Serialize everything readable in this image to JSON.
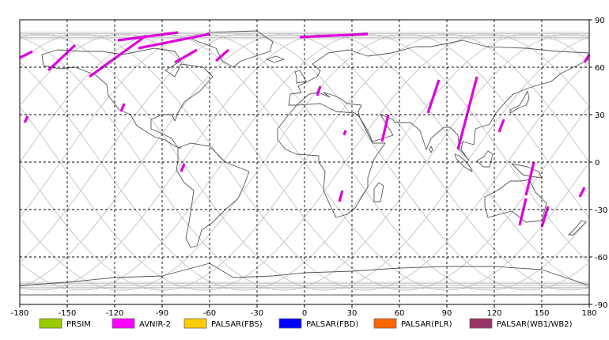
{
  "map": {
    "x_ticks": [
      "-180",
      "-150",
      "-120",
      "-90",
      "-60",
      "-30",
      "0",
      "30",
      "60",
      "90",
      "120",
      "150",
      "180"
    ],
    "y_ticks": [
      "90",
      "60",
      "30",
      "0",
      "-30",
      "-60",
      "-90"
    ],
    "lon_range": [
      -180,
      180
    ],
    "lat_range": [
      -90,
      90
    ],
    "grid": "dashed",
    "background": "#ffffff",
    "coastline_color": "#555555",
    "orbit_color": "#bbbbbb",
    "swath_color": "#dd00dd"
  },
  "legend": {
    "items": [
      {
        "label": "PRSIM",
        "color": "#99cc00"
      },
      {
        "label": "AVNIR-2",
        "color": "#ff00ff"
      },
      {
        "label": "PALSAR(FBS)",
        "color": "#ffcc00"
      },
      {
        "label": "PALSAR(FBD)",
        "color": "#0000ff"
      },
      {
        "label": "PALSAR(PLR)",
        "color": "#ff6600"
      },
      {
        "label": "PALSAR(WB1/WB2)",
        "color": "#993366"
      }
    ]
  },
  "swaths": [
    {
      "lon1": -180,
      "lat1": 66,
      "lon2": -172,
      "lat2": 70
    },
    {
      "lon1": -162,
      "lat1": 58,
      "lon2": -145,
      "lat2": 74
    },
    {
      "lon1": -136,
      "lat1": 54,
      "lon2": -100,
      "lat2": 80
    },
    {
      "lon1": -105,
      "lat1": 72,
      "lon2": -60,
      "lat2": 81
    },
    {
      "lon1": -118,
      "lat1": 77,
      "lon2": -80,
      "lat2": 82
    },
    {
      "lon1": -82,
      "lat1": 63,
      "lon2": -68,
      "lat2": 71
    },
    {
      "lon1": -56,
      "lat1": 64,
      "lon2": -48,
      "lat2": 71
    },
    {
      "lon1": -3,
      "lat1": 79,
      "lon2": 40,
      "lat2": 81
    },
    {
      "lon1": -177,
      "lat1": 25,
      "lon2": -175,
      "lat2": 29
    },
    {
      "lon1": -116,
      "lat1": 32,
      "lon2": -114,
      "lat2": 37
    },
    {
      "lon1": -78,
      "lat1": -6,
      "lon2": -76,
      "lat2": -1
    },
    {
      "lon1": 8,
      "lat1": 42,
      "lon2": 10,
      "lat2": 48
    },
    {
      "lon1": 22,
      "lat1": -25,
      "lon2": 24,
      "lat2": -18
    },
    {
      "lon1": 25,
      "lat1": 17,
      "lon2": 26,
      "lat2": 20
    },
    {
      "lon1": 49,
      "lat1": 13,
      "lon2": 53,
      "lat2": 30
    },
    {
      "lon1": 78,
      "lat1": 31,
      "lon2": 85,
      "lat2": 52
    },
    {
      "lon1": 97,
      "lat1": 8,
      "lon2": 109,
      "lat2": 54
    },
    {
      "lon1": 123,
      "lat1": 19,
      "lon2": 126,
      "lat2": 27
    },
    {
      "lon1": 140,
      "lat1": -21,
      "lon2": 145,
      "lat2": 0
    },
    {
      "lon1": 136,
      "lat1": -40,
      "lon2": 140,
      "lat2": -23
    },
    {
      "lon1": 150,
      "lat1": -41,
      "lon2": 154,
      "lat2": -28
    },
    {
      "lon1": 174,
      "lat1": -22,
      "lon2": 177,
      "lat2": -16
    },
    {
      "lon1": 177,
      "lat1": 63,
      "lon2": 180,
      "lat2": 68
    }
  ],
  "landmasses": [
    {
      "name": "north-america",
      "pts": [
        [
          -166,
          68
        ],
        [
          -156,
          71
        ],
        [
          -140,
          70
        ],
        [
          -128,
          70
        ],
        [
          -115,
          68
        ],
        [
          -95,
          72
        ],
        [
          -82,
          70
        ],
        [
          -78,
          64
        ],
        [
          -88,
          58
        ],
        [
          -82,
          54
        ],
        [
          -78,
          62
        ],
        [
          -64,
          60
        ],
        [
          -58,
          54
        ],
        [
          -66,
          45
        ],
        [
          -76,
          38
        ],
        [
          -80,
          31
        ],
        [
          -82,
          26
        ],
        [
          -84,
          30
        ],
        [
          -90,
          30
        ],
        [
          -97,
          27
        ],
        [
          -97,
          21
        ],
        [
          -90,
          18
        ],
        [
          -84,
          15
        ],
        [
          -80,
          9
        ],
        [
          -78,
          9
        ],
        [
          -82,
          10
        ],
        [
          -88,
          14
        ],
        [
          -95,
          16
        ],
        [
          -106,
          23
        ],
        [
          -110,
          30
        ],
        [
          -117,
          33
        ],
        [
          -124,
          42
        ],
        [
          -125,
          49
        ],
        [
          -132,
          55
        ],
        [
          -145,
          60
        ],
        [
          -155,
          59
        ],
        [
          -165,
          61
        ],
        [
          -166,
          68
        ]
      ]
    },
    {
      "name": "greenland",
      "pts": [
        [
          -72,
          78
        ],
        [
          -60,
          82
        ],
        [
          -30,
          83
        ],
        [
          -20,
          76
        ],
        [
          -22,
          70
        ],
        [
          -40,
          64
        ],
        [
          -45,
          60
        ],
        [
          -52,
          64
        ],
        [
          -56,
          72
        ],
        [
          -72,
          78
        ]
      ]
    },
    {
      "name": "south-america",
      "pts": [
        [
          -80,
          9
        ],
        [
          -72,
          12
        ],
        [
          -60,
          10
        ],
        [
          -50,
          0
        ],
        [
          -35,
          -6
        ],
        [
          -38,
          -14
        ],
        [
          -42,
          -23
        ],
        [
          -50,
          -30
        ],
        [
          -58,
          -38
        ],
        [
          -65,
          -43
        ],
        [
          -68,
          -53
        ],
        [
          -72,
          -54
        ],
        [
          -75,
          -48
        ],
        [
          -73,
          -38
        ],
        [
          -71,
          -25
        ],
        [
          -70,
          -18
        ],
        [
          -76,
          -13
        ],
        [
          -81,
          -5
        ],
        [
          -80,
          1
        ],
        [
          -80,
          9
        ]
      ]
    },
    {
      "name": "africa",
      "pts": [
        [
          -17,
          21
        ],
        [
          -10,
          30
        ],
        [
          -5,
          36
        ],
        [
          10,
          37
        ],
        [
          20,
          32
        ],
        [
          32,
          31
        ],
        [
          35,
          28
        ],
        [
          43,
          12
        ],
        [
          51,
          12
        ],
        [
          44,
          2
        ],
        [
          40,
          -10
        ],
        [
          40,
          -16
        ],
        [
          35,
          -24
        ],
        [
          32,
          -29
        ],
        [
          27,
          -33
        ],
        [
          20,
          -35
        ],
        [
          17,
          -29
        ],
        [
          12,
          -18
        ],
        [
          13,
          -6
        ],
        [
          9,
          0
        ],
        [
          9,
          4
        ],
        [
          -5,
          5
        ],
        [
          -12,
          8
        ],
        [
          -17,
          14
        ],
        [
          -17,
          21
        ]
      ]
    },
    {
      "name": "eurasia",
      "pts": [
        [
          -10,
          36
        ],
        [
          -9,
          43
        ],
        [
          -2,
          44
        ],
        [
          -4,
          48
        ],
        [
          2,
          51
        ],
        [
          8,
          54
        ],
        [
          10,
          58
        ],
        [
          5,
          62
        ],
        [
          15,
          69
        ],
        [
          28,
          71
        ],
        [
          40,
          67
        ],
        [
          55,
          69
        ],
        [
          70,
          73
        ],
        [
          80,
          73
        ],
        [
          100,
          77
        ],
        [
          115,
          73
        ],
        [
          140,
          72
        ],
        [
          160,
          70
        ],
        [
          180,
          69
        ],
        [
          180,
          65
        ],
        [
          170,
          60
        ],
        [
          162,
          56
        ],
        [
          156,
          51
        ],
        [
          142,
          47
        ],
        [
          132,
          43
        ],
        [
          127,
          38
        ],
        [
          121,
          31
        ],
        [
          117,
          24
        ],
        [
          108,
          21
        ],
        [
          107,
          11
        ],
        [
          100,
          13
        ],
        [
          99,
          8
        ],
        [
          104,
          1
        ],
        [
          98,
          8
        ],
        [
          97,
          17
        ],
        [
          92,
          22
        ],
        [
          88,
          22
        ],
        [
          80,
          15
        ],
        [
          77,
          8
        ],
        [
          73,
          20
        ],
        [
          67,
          25
        ],
        [
          57,
          25
        ],
        [
          56,
          27
        ],
        [
          48,
          30
        ],
        [
          56,
          17
        ],
        [
          43,
          13
        ],
        [
          40,
          20
        ],
        [
          35,
          28
        ],
        [
          34,
          32
        ],
        [
          36,
          36
        ],
        [
          27,
          37
        ],
        [
          23,
          40
        ],
        [
          19,
          42
        ],
        [
          12,
          44
        ],
        [
          16,
          41
        ],
        [
          9,
          44
        ],
        [
          3,
          43
        ],
        [
          -5,
          36
        ],
        [
          -10,
          36
        ]
      ]
    },
    {
      "name": "australia",
      "pts": [
        [
          114,
          -22
        ],
        [
          122,
          -18
        ],
        [
          130,
          -12
        ],
        [
          137,
          -12
        ],
        [
          142,
          -11
        ],
        [
          146,
          -19
        ],
        [
          153,
          -26
        ],
        [
          150,
          -37
        ],
        [
          140,
          -38
        ],
        [
          131,
          -31
        ],
        [
          116,
          -35
        ],
        [
          114,
          -28
        ],
        [
          114,
          -22
        ]
      ]
    },
    {
      "name": "antarctica",
      "pts": [
        [
          -180,
          -78
        ],
        [
          -150,
          -76
        ],
        [
          -120,
          -73
        ],
        [
          -90,
          -72
        ],
        [
          -60,
          -64
        ],
        [
          -45,
          -73
        ],
        [
          -20,
          -72
        ],
        [
          0,
          -70
        ],
        [
          30,
          -69
        ],
        [
          60,
          -67
        ],
        [
          90,
          -66
        ],
        [
          120,
          -66
        ],
        [
          150,
          -68
        ],
        [
          180,
          -78
        ],
        [
          180,
          -84
        ],
        [
          -180,
          -84
        ],
        [
          -180,
          -78
        ]
      ]
    },
    {
      "name": "great-britain",
      "pts": [
        [
          -5,
          50
        ],
        [
          1,
          51
        ],
        [
          0,
          53
        ],
        [
          -3,
          58
        ],
        [
          -6,
          57
        ],
        [
          -5,
          54
        ],
        [
          -5,
          50
        ]
      ]
    },
    {
      "name": "madagascar",
      "pts": [
        [
          44,
          -25
        ],
        [
          48,
          -25
        ],
        [
          50,
          -15
        ],
        [
          47,
          -13
        ],
        [
          44,
          -17
        ],
        [
          44,
          -25
        ]
      ]
    },
    {
      "name": "japan",
      "pts": [
        [
          130,
          31
        ],
        [
          135,
          34
        ],
        [
          140,
          36
        ],
        [
          142,
          40
        ],
        [
          141,
          45
        ],
        [
          139,
          41
        ],
        [
          136,
          36
        ],
        [
          130,
          33
        ],
        [
          130,
          31
        ]
      ]
    },
    {
      "name": "borneo",
      "pts": [
        [
          109,
          1
        ],
        [
          113,
          -3
        ],
        [
          117,
          -3
        ],
        [
          119,
          5
        ],
        [
          116,
          7
        ],
        [
          113,
          3
        ],
        [
          109,
          1
        ]
      ]
    },
    {
      "name": "sumatra",
      "pts": [
        [
          95,
          5
        ],
        [
          98,
          4
        ],
        [
          104,
          -2
        ],
        [
          106,
          -6
        ],
        [
          101,
          -3
        ],
        [
          96,
          2
        ],
        [
          95,
          5
        ]
      ]
    },
    {
      "name": "new-guinea",
      "pts": [
        [
          131,
          -1
        ],
        [
          141,
          -3
        ],
        [
          148,
          -6
        ],
        [
          150,
          -10
        ],
        [
          143,
          -9
        ],
        [
          138,
          -8
        ],
        [
          131,
          -1
        ]
      ]
    },
    {
      "name": "new-zealand",
      "pts": [
        [
          167,
          -46
        ],
        [
          172,
          -41
        ],
        [
          175,
          -37
        ],
        [
          178,
          -38
        ],
        [
          174,
          -42
        ],
        [
          170,
          -46
        ],
        [
          167,
          -46
        ]
      ]
    },
    {
      "name": "sri-lanka",
      "pts": [
        [
          80,
          6
        ],
        [
          81,
          8
        ],
        [
          80,
          10
        ],
        [
          79,
          8
        ],
        [
          80,
          6
        ]
      ]
    },
    {
      "name": "iceland",
      "pts": [
        [
          -24,
          65
        ],
        [
          -18,
          67
        ],
        [
          -13,
          65
        ],
        [
          -19,
          63
        ],
        [
          -24,
          65
        ]
      ]
    }
  ]
}
